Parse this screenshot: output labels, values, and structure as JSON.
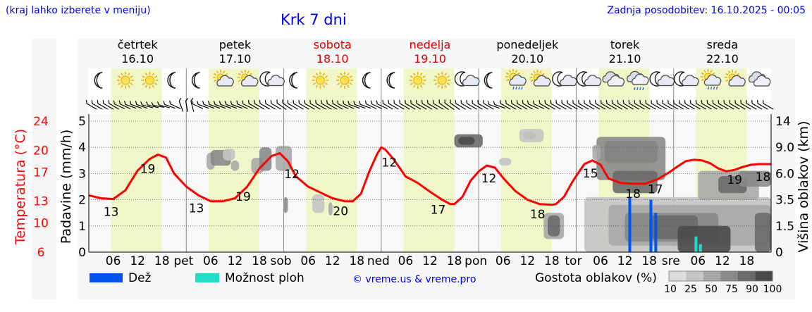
{
  "header": {
    "region_note": "(kraj lahko izberete v meniju)",
    "title": "Krk 7 dni",
    "updated": "Zadnja posodobitev: 16.10.2025 - 00:05"
  },
  "days": [
    {
      "name": "četrtek",
      "date": "16.10",
      "weekend": false,
      "abbr": ""
    },
    {
      "name": "petek",
      "date": "17.10",
      "weekend": false,
      "abbr": "pet"
    },
    {
      "name": "sobota",
      "date": "18.10",
      "weekend": true,
      "abbr": "sob"
    },
    {
      "name": "nedelja",
      "date": "19.10",
      "weekend": true,
      "abbr": "ned"
    },
    {
      "name": "ponedeljek",
      "date": "20.10",
      "weekend": false,
      "abbr": "pon"
    },
    {
      "name": "torek",
      "date": "21.10",
      "weekend": false,
      "abbr": "tor"
    },
    {
      "name": "sreda",
      "date": "22.10",
      "weekend": false,
      "abbr": "sre"
    }
  ],
  "hour_ticks": [
    "06",
    "12",
    "18"
  ],
  "weather_icons": [
    "moon-icon",
    "sun-icon",
    "sun-icon",
    "moon-icon",
    "moon-icon",
    "sun-cloud-icon",
    "sun-cloud-icon",
    "moon-cloud-icon",
    "moon-icon",
    "sun-icon",
    "sun-icon",
    "moon-icon",
    "moon-icon",
    "sun-icon",
    "sun-icon",
    "moon-cloud-icon",
    "moon-icon",
    "sun-cloud-rain-icon",
    "sun-cloud-icon",
    "moon-cloud-icon",
    "moon-cloud-icon",
    "cloud-icon",
    "cloud-rain-icon",
    "moon-cloud-icon",
    "moon-cloud-icon",
    "sun-cloud-rain-icon",
    "sun-cloud-icon",
    "cloud-icon"
  ],
  "wind_barbs": [
    -60,
    -60,
    -60,
    -60,
    -60,
    -65,
    -65,
    -70,
    -70,
    -70,
    -75,
    -75,
    -80,
    -75,
    -70,
    -65,
    -20,
    -10,
    -15,
    -65,
    -70,
    -70,
    -70,
    -70,
    -70,
    -70,
    -70,
    -65,
    -65,
    -60,
    -60,
    -60,
    -60,
    -60,
    -55,
    -55,
    -60,
    -60,
    -60,
    -60,
    -60,
    -60,
    -60,
    -60,
    -60,
    -65,
    -65,
    -70,
    -70,
    -70,
    -65,
    -65,
    -65,
    -60,
    -60,
    -60,
    -60,
    -60,
    -60,
    -60,
    -60,
    -60,
    -60,
    -55,
    -55,
    -55,
    -60,
    -60,
    -60,
    -60,
    -60,
    -60,
    -70,
    -70,
    -60,
    -60,
    -60,
    -60,
    -60,
    -65,
    -65,
    -60,
    -60,
    -60,
    -60,
    -60,
    -60,
    -60,
    -60,
    -60,
    -60,
    -60,
    -60,
    -60,
    -60,
    -60,
    -60,
    -60,
    -60,
    -60,
    -60,
    -60,
    -60,
    -60,
    -60,
    -60,
    -60,
    -60,
    -60,
    -60,
    -60,
    -60,
    -60,
    -60,
    -60,
    -60,
    -60,
    -60,
    -60,
    -60,
    -60,
    -60
  ],
  "wind_barbs_right": [
    null,
    0,
    0,
    10,
    10,
    15,
    20,
    25,
    30,
    35,
    40,
    40,
    45,
    45,
    40,
    35,
    45,
    50,
    50,
    50,
    45,
    30,
    30,
    25,
    20,
    15,
    10,
    5,
    5,
    5,
    5,
    5,
    5,
    10,
    10,
    5,
    5,
    5
  ],
  "chart_data": {
    "type": "line",
    "title": "Krk 7 dni",
    "x_unit": "hours from 16.10 00:00",
    "x_range": [
      0,
      168
    ],
    "temperature": {
      "ylabel": "Temperatura (°C)",
      "ticks": [
        6,
        10,
        13,
        17,
        20,
        24
      ],
      "ylim": [
        6,
        24
      ],
      "color": "#ff0000",
      "points": [
        [
          0,
          13.8
        ],
        [
          3,
          13.4
        ],
        [
          6,
          13.3
        ],
        [
          9,
          14.5
        ],
        [
          12,
          17.2
        ],
        [
          15,
          18.8
        ],
        [
          17,
          19.4
        ],
        [
          19,
          19
        ],
        [
          21,
          16.8
        ],
        [
          24,
          15
        ],
        [
          27,
          13.8
        ],
        [
          30,
          13
        ],
        [
          33,
          13
        ],
        [
          36,
          13.4
        ],
        [
          39,
          15
        ],
        [
          42,
          17.5
        ],
        [
          45,
          19.2
        ],
        [
          47,
          19.6
        ],
        [
          49,
          18.5
        ],
        [
          51,
          16.4
        ],
        [
          54,
          15
        ],
        [
          57,
          14.2
        ],
        [
          60,
          13.4
        ],
        [
          63,
          13
        ],
        [
          65,
          13
        ],
        [
          67,
          14
        ],
        [
          69,
          17
        ],
        [
          71,
          19.5
        ],
        [
          72,
          20.4
        ],
        [
          73,
          20.1
        ],
        [
          75,
          18.8
        ],
        [
          78,
          16.4
        ],
        [
          81,
          15.5
        ],
        [
          84,
          14.3
        ],
        [
          87,
          13.2
        ],
        [
          89,
          12.6
        ],
        [
          90,
          12.6
        ],
        [
          92,
          13.6
        ],
        [
          94,
          15.8
        ],
        [
          96,
          17.1
        ],
        [
          98,
          17.9
        ],
        [
          100,
          17.6
        ],
        [
          102,
          16.2
        ],
        [
          105,
          14.4
        ],
        [
          108,
          13.2
        ],
        [
          111,
          12.6
        ],
        [
          114,
          12.5
        ],
        [
          115,
          12.6
        ],
        [
          117,
          13.6
        ],
        [
          119,
          15.6
        ],
        [
          121,
          17.3
        ],
        [
          122,
          18.1
        ],
        [
          124,
          18.6
        ],
        [
          126,
          18
        ],
        [
          128,
          16.1
        ],
        [
          131,
          15.5
        ],
        [
          134,
          15.4
        ],
        [
          137,
          15.4
        ],
        [
          140,
          16
        ],
        [
          143,
          17
        ],
        [
          145,
          17.8
        ],
        [
          147,
          18.5
        ],
        [
          149,
          18.7
        ],
        [
          151,
          18.6
        ],
        [
          153,
          18.2
        ],
        [
          155,
          17.5
        ],
        [
          157,
          17.1
        ],
        [
          159,
          17.3
        ],
        [
          161,
          17.7
        ],
        [
          163,
          18
        ],
        [
          165,
          18.1
        ],
        [
          167,
          18.1
        ],
        [
          168,
          18.1
        ]
      ],
      "labels": [
        {
          "x": 5.5,
          "v": "13"
        },
        {
          "x": 14.5,
          "v": "19"
        },
        {
          "x": 26.5,
          "v": "13"
        },
        {
          "x": 38,
          "v": "19"
        },
        {
          "x": 50,
          "v": "12"
        },
        {
          "x": 62,
          "v": "20"
        },
        {
          "x": 74,
          "v": "12"
        },
        {
          "x": 86,
          "v": "17"
        },
        {
          "x": 98.5,
          "v": "12"
        },
        {
          "x": 110.5,
          "v": "18"
        },
        {
          "x": 123.5,
          "v": "15"
        },
        {
          "x": 134,
          "v": "18"
        },
        {
          "x": 139.5,
          "v": "17"
        },
        {
          "x": 159,
          "v": "19"
        },
        {
          "x": 166,
          "v": "18"
        }
      ]
    },
    "precipitation": {
      "ylabel": "Padavine (mm/h)",
      "ticks": [
        0,
        1,
        2,
        3,
        4,
        5
      ],
      "ylim": [
        0,
        5
      ],
      "rain": [
        {
          "x": 133.2,
          "v": 2.1
        },
        {
          "x": 134.6,
          "v": 0.0
        },
        {
          "x": 138.4,
          "v": 2.0
        },
        {
          "x": 139.6,
          "v": 1.5
        }
      ],
      "showers": [
        {
          "x": 149.5,
          "v": 0.6
        },
        {
          "x": 150.6,
          "v": 0.3
        }
      ]
    },
    "cloud_height": {
      "ylabel": "Višina oblakov (km)",
      "ticks": [
        "0",
        "1.5",
        "3.5",
        "6.0",
        "9.0",
        "14"
      ]
    },
    "legend": [
      {
        "label": "Dež",
        "color": "#0055ee"
      },
      {
        "label": "Možnost ploh",
        "color": "#22ddc8"
      }
    ],
    "cloud_legend": {
      "label": "Gostota oblakov (%)",
      "levels": [
        "10",
        "25",
        "50",
        "75",
        "90",
        "100"
      ],
      "colors": [
        "#dcdcdc",
        "#c4c4c4",
        "#a8a8a8",
        "#8a8a8a",
        "#6a6a6a",
        "#4a4a4a"
      ]
    },
    "copyright": "© vreme.us & vreme.pro"
  },
  "colors": {
    "weekend": "#dd0000",
    "daylight": "#f0f6c8",
    "title": "#0000ee"
  }
}
